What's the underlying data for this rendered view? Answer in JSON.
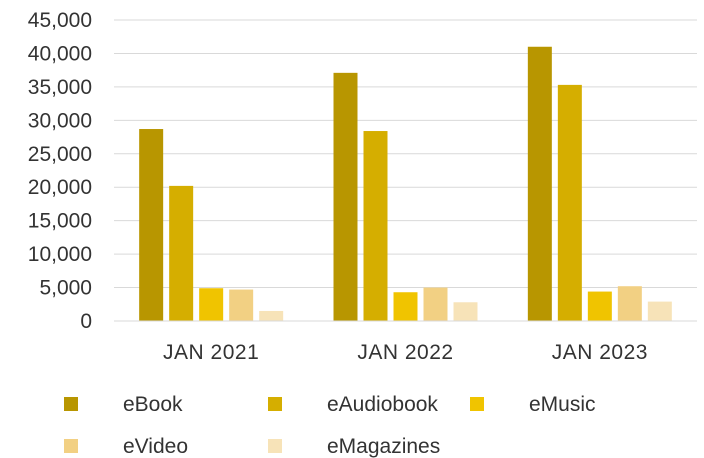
{
  "chart_data": {
    "type": "bar",
    "title": "",
    "xlabel": "",
    "ylabel": "",
    "categories": [
      "JAN 2021",
      "JAN 2022",
      "JAN 2023"
    ],
    "ylim": [
      0,
      45000
    ],
    "yticks": [
      "0",
      "5,000",
      "10,000",
      "15,000",
      "20,000",
      "25,000",
      "30,000",
      "35,000",
      "40,000",
      "45,000"
    ],
    "grid": true,
    "legend_position": "bottom",
    "series": [
      {
        "name": "eBook",
        "color": "#B89600",
        "values": [
          28700,
          37100,
          41000
        ]
      },
      {
        "name": "eAudiobook",
        "color": "#D5AE00",
        "values": [
          20200,
          28400,
          35300
        ]
      },
      {
        "name": "eMusic",
        "color": "#F0C400",
        "values": [
          4900,
          4300,
          4400
        ]
      },
      {
        "name": "eVideo",
        "color": "#F2D083",
        "values": [
          4700,
          5000,
          5200
        ]
      },
      {
        "name": "eMagazines",
        "color": "#F7E3B8",
        "values": [
          1500,
          2800,
          2900
        ]
      }
    ]
  }
}
